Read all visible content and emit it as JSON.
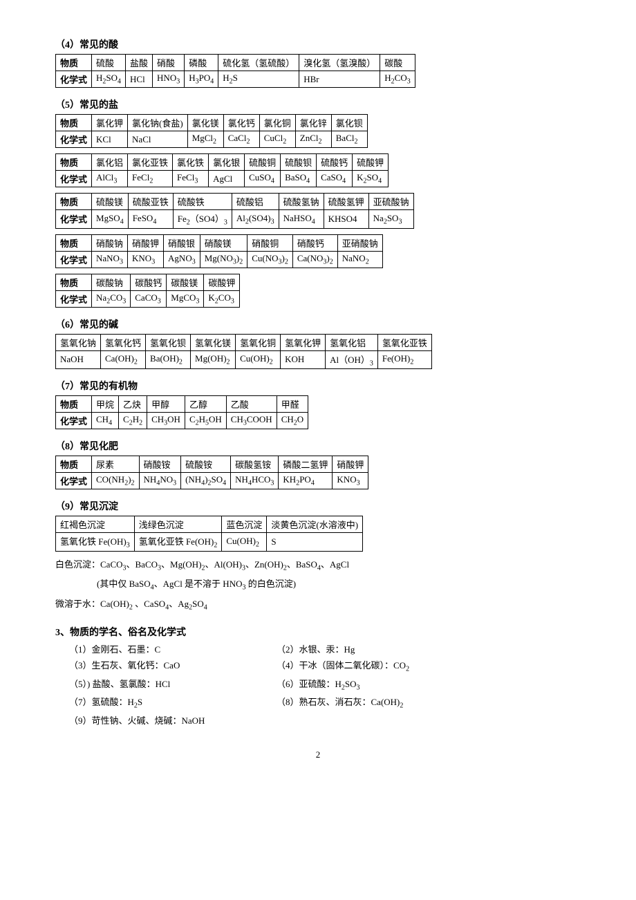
{
  "section4": {
    "title": "（4）常见的酸",
    "rowHeads": [
      "物质",
      "化学式"
    ],
    "cols": [
      {
        "name": "硫酸",
        "formula": "H<sub>2</sub>SO<sub>4</sub>"
      },
      {
        "name": "盐酸",
        "formula": "HCl"
      },
      {
        "name": "硝酸",
        "formula": "HNO<sub>3</sub>"
      },
      {
        "name": "磷酸",
        "formula": "H<sub>3</sub>PO<sub>4</sub>"
      },
      {
        "name": "硫化氢（氢硫酸）",
        "formula": "H<sub>2</sub>S"
      },
      {
        "name": "溴化氢（氢溴酸）",
        "formula": "HBr"
      },
      {
        "name": "碳酸",
        "formula": "H<sub>2</sub>CO<sub>3</sub>"
      }
    ]
  },
  "section5": {
    "title": "（5）常见的盐",
    "rowHeads": [
      "物质",
      "化学式"
    ],
    "tables": [
      [
        {
          "name": "氯化钾",
          "formula": "KCl"
        },
        {
          "name": "氯化钠(食盐)",
          "formula": "NaCl"
        },
        {
          "name": "氯化镁",
          "formula": "MgCl<sub>2</sub>"
        },
        {
          "name": "氯化钙",
          "formula": "CaCl<sub>2</sub>"
        },
        {
          "name": "氯化铜",
          "formula": "CuCl<sub>2</sub>"
        },
        {
          "name": "氯化锌",
          "formula": "ZnCl<sub>2</sub>"
        },
        {
          "name": "氯化钡",
          "formula": "BaCl<sub>2</sub>"
        }
      ],
      [
        {
          "name": "氯化铝",
          "formula": "AlCl<sub>3</sub>"
        },
        {
          "name": "氯化亚铁",
          "formula": "FeCl<sub>2</sub>"
        },
        {
          "name": "氯化铁",
          "formula": "FeCl<sub>3</sub>"
        },
        {
          "name": "氯化银",
          "formula": "AgCl"
        },
        {
          "name": "硫酸铜",
          "formula": "CuSO<sub>4</sub>"
        },
        {
          "name": "硫酸钡",
          "formula": "BaSO<sub>4</sub>"
        },
        {
          "name": "硫酸钙",
          "formula": "CaSO<sub>4</sub>"
        },
        {
          "name": "硫酸钾",
          "formula": "K<sub>2</sub>SO<sub>4</sub>"
        }
      ],
      [
        {
          "name": "硫酸镁",
          "formula": "MgSO<sub>4</sub>"
        },
        {
          "name": "硫酸亚铁",
          "formula": "FeSO<sub>4</sub>"
        },
        {
          "name": "硫酸铁",
          "formula": "Fe<sub>2</sub>（SO4）<sub>3</sub>"
        },
        {
          "name": "硫酸铝",
          "formula": "Al<sub>2</sub>(SO4)<sub>3</sub>"
        },
        {
          "name": "硫酸氢钠",
          "formula": "NaHSO<sub>4</sub>"
        },
        {
          "name": "硫酸氢钾",
          "formula": "KHSO4"
        },
        {
          "name": "亚硫酸钠",
          "formula": "Na<sub>2</sub>SO<sub>3</sub>"
        }
      ],
      [
        {
          "name": "硝酸钠",
          "formula": "NaNO<sub>3</sub>"
        },
        {
          "name": "硝酸钾",
          "formula": "KNO<sub>3</sub>"
        },
        {
          "name": "硝酸银",
          "formula": "AgNO<sub>3</sub>"
        },
        {
          "name": "硝酸镁",
          "formula": "Mg(NO<sub>3</sub>)<sub>2</sub>"
        },
        {
          "name": "硝酸铜",
          "formula": "Cu(NO<sub>3</sub>)<sub>2</sub>"
        },
        {
          "name": "硝酸钙",
          "formula": "Ca(NO<sub>3</sub>)<sub>2</sub>"
        },
        {
          "name": "亚硝酸钠",
          "formula": "NaNO<sub>2</sub>"
        }
      ],
      [
        {
          "name": "碳酸钠",
          "formula": "Na<sub>2</sub>CO<sub>3</sub>"
        },
        {
          "name": "碳酸钙",
          "formula": "CaCO<sub>3</sub>"
        },
        {
          "name": "碳酸镁",
          "formula": "MgCO<sub>3</sub>"
        },
        {
          "name": "碳酸钾",
          "formula": "K<sub>2</sub>CO<sub>3</sub>"
        }
      ]
    ]
  },
  "section6": {
    "title": "（6）常见的碱",
    "row1": [
      "氢氧化钠",
      "氢氧化钙",
      "氢氧化钡",
      "氢氧化镁",
      "氢氧化铜",
      "氢氧化钾",
      "氢氧化铝",
      "氢氧化亚铁"
    ],
    "row2": [
      "NaOH",
      "Ca(OH)<sub>2</sub>",
      "Ba(OH)<sub>2</sub>",
      "Mg(OH)<sub>2</sub>",
      "Cu(OH)<sub>2</sub>",
      "KOH",
      "Al（OH）<sub>3</sub>",
      "Fe(OH)<sub>2</sub>"
    ]
  },
  "section7": {
    "title": "（7）常见的有机物",
    "rowHeads": [
      "物质",
      "化学式"
    ],
    "cols": [
      {
        "name": "甲烷",
        "formula": "CH<sub>4</sub>"
      },
      {
        "name": "乙炔",
        "formula": "C<sub>2</sub>H<sub>2</sub>"
      },
      {
        "name": "甲醇",
        "formula": "CH<sub>3</sub>OH"
      },
      {
        "name": "乙醇",
        "formula": "C<sub>2</sub>H<sub>5</sub>OH"
      },
      {
        "name": "乙酸",
        "formula": "CH<sub>3</sub>COOH"
      },
      {
        "name": "甲醛",
        "formula": "CH<sub>2</sub>O"
      }
    ]
  },
  "section8": {
    "title": "（8）常见化肥",
    "rowHeads": [
      "物质",
      "化学式"
    ],
    "cols": [
      {
        "name": "尿素",
        "formula": "CO(NH<sub>2</sub>)<sub>2</sub>"
      },
      {
        "name": "硝酸铵",
        "formula": "NH<sub>4</sub>NO<sub>3</sub>"
      },
      {
        "name": "硫酸铵",
        "formula": "(NH<sub>4</sub>)<sub>2</sub>SO<sub>4</sub>"
      },
      {
        "name": "碳酸氢铵",
        "formula": "NH<sub>4</sub>HCO<sub>3</sub>"
      },
      {
        "name": "磷酸二氢钾",
        "formula": "KH<sub>2</sub>PO<sub>4</sub>"
      },
      {
        "name": "硝酸钾",
        "formula": "KNO<sub>3</sub>"
      }
    ]
  },
  "section9": {
    "title": "（9）常见沉淀",
    "row1": [
      "红褐色沉淀",
      "浅绿色沉淀",
      "蓝色沉淀",
      "淡黄色沉淀(水溶液中)"
    ],
    "row2": [
      "氢氧化铁 Fe(OH)<sub>3</sub>",
      "氢氧化亚铁 Fe(OH)<sub>2</sub>",
      "Cu(OH)<sub>2</sub>",
      "S"
    ],
    "line1": "白色沉淀：CaCO<sub>3</sub>、BaCO<sub>3</sub>、Mg(OH)<sub>2</sub>、Al(OH)<sub>3</sub>、Zn(OH)<sub>2</sub>、BaSO<sub>4</sub>、AgCl",
    "line2": "(其中仅 BaSO<sub>4</sub>、AgCl 是不溶于 HNO<sub>3</sub> 的白色沉淀)",
    "line3": "微溶于水：Ca(OH)<sub>2</sub> 、CaSO<sub>4</sub>、Ag<sub>2</sub>SO<sub>4</sub>"
  },
  "section_names": {
    "title": "3、物质的学名、俗名及化学式",
    "items": [
      {
        "l": "（1）金刚石、石墨：C",
        "r": "（2）水银、汞：Hg"
      },
      {
        "l": "（3）生石灰、氧化钙：CaO",
        "r": "（4）干冰（固体二氧化碳）：CO<sub>2</sub>"
      },
      {
        "l": "（5）) 盐酸、氢氯酸：HCl",
        "r": "（6）亚硫酸：H<sub>2</sub>SO<sub>3</sub>"
      },
      {
        "l": "（7）氢硫酸：H<sub>2</sub>S",
        "r": "（8）熟石灰、消石灰：Ca(OH)<sub>2</sub>"
      },
      {
        "l": "（9）苛性钠、火碱、烧碱：NaOH",
        "r": ""
      }
    ]
  },
  "pageNumber": "2"
}
